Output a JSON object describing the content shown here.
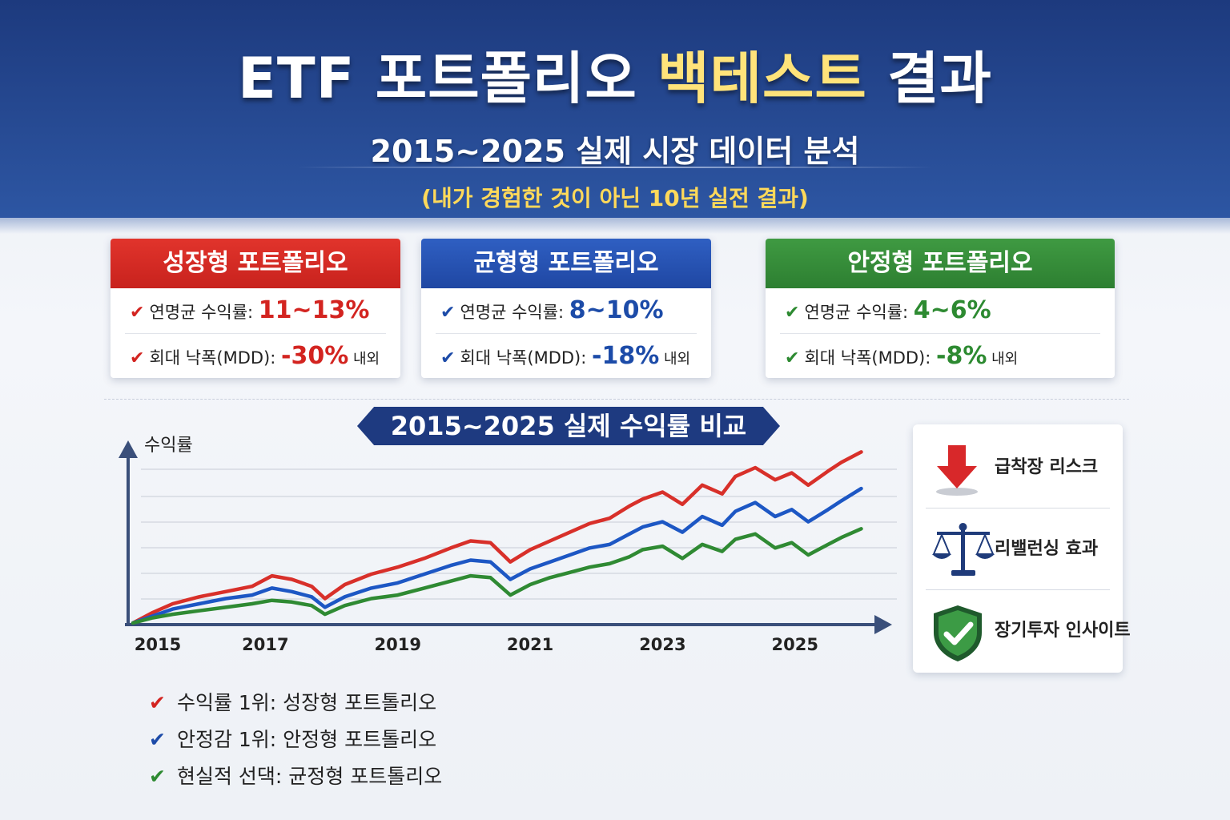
{
  "header": {
    "title_main": "ETF 포트폴리오 ",
    "title_highlight": "백테스트",
    "title_end": " 결과",
    "subtitle": "2015~2025 실제 시장 데이터 분석",
    "tagline": "(내가 경험한 것이 아닌 10년 실전 결과)"
  },
  "cards": [
    {
      "title": "성장형 포트폴리오",
      "color": "#d32420",
      "rows": [
        {
          "label": "연명균 수익률: ",
          "value": "11~13%",
          "suffix": ""
        },
        {
          "label": "회대 낙폭(MDD): ",
          "value": "-30%",
          "suffix": " 내외"
        }
      ]
    },
    {
      "title": "균형형 포트폴리오",
      "color": "#1c4ba8",
      "rows": [
        {
          "label": "연명균 수익률: ",
          "value": "8~10%",
          "suffix": ""
        },
        {
          "label": "회대 낙폭(MDD): ",
          "value": "-18%",
          "suffix": " 내외"
        }
      ]
    },
    {
      "title": "안정형 포트폴리오",
      "color": "#2d8a31",
      "rows": [
        {
          "label": "연명균 수익률: ",
          "value": "4~6%",
          "suffix": ""
        },
        {
          "label": "회대 낙폭(MDD): ",
          "value": "-8%",
          "suffix": " 내외"
        }
      ]
    }
  ],
  "chart_banner": "2015~2025  실제 수익률 비교",
  "chart_data": {
    "type": "line",
    "title": "2015~2025  실제 수익률 비교",
    "ylabel": "수익률",
    "xlabel": "",
    "x_ticks": [
      "2015",
      "2017",
      "2019",
      "2021",
      "2023",
      "2025"
    ],
    "xlim": [
      2015,
      2026.2
    ],
    "ylim": [
      0,
      100
    ],
    "grid": true,
    "series": [
      {
        "color": "#d8302a",
        "x": [
          2015,
          2015.3,
          2015.6,
          2016.0,
          2016.4,
          2016.8,
          2017.1,
          2017.4,
          2017.7,
          2017.9,
          2018.2,
          2018.6,
          2019.0,
          2019.4,
          2019.8,
          2020.1,
          2020.4,
          2020.7,
          2021.0,
          2021.3,
          2021.6,
          2021.9,
          2022.2,
          2022.5,
          2022.7,
          2023.0,
          2023.3,
          2023.6,
          2023.9,
          2024.1,
          2024.4,
          2024.7,
          2024.95,
          2025.2,
          2025.5,
          2025.7,
          2026.0
        ],
        "y": [
          0,
          6,
          11,
          15,
          18,
          21,
          27,
          25,
          21,
          14,
          22,
          28,
          32,
          37,
          43,
          47,
          46,
          35,
          42,
          47,
          52,
          57,
          60,
          67,
          71,
          75,
          68,
          79,
          74,
          84,
          89,
          82,
          86,
          79,
          87,
          92,
          98
        ]
      },
      {
        "color": "#1d57c4",
        "x": [
          2015,
          2015.3,
          2015.6,
          2016.0,
          2016.4,
          2016.8,
          2017.1,
          2017.4,
          2017.7,
          2017.9,
          2018.2,
          2018.6,
          2019.0,
          2019.4,
          2019.8,
          2020.1,
          2020.4,
          2020.7,
          2021.0,
          2021.3,
          2021.6,
          2021.9,
          2022.2,
          2022.5,
          2022.7,
          2023.0,
          2023.3,
          2023.6,
          2023.9,
          2024.1,
          2024.4,
          2024.7,
          2024.95,
          2025.2,
          2025.5,
          2025.7,
          2026.0
        ],
        "y": [
          0,
          4,
          8,
          11,
          14,
          16,
          20,
          18,
          15,
          9,
          15,
          20,
          23,
          28,
          33,
          36,
          35,
          25,
          31,
          35,
          39,
          43,
          45,
          51,
          55,
          58,
          52,
          61,
          56,
          64,
          69,
          61,
          65,
          58,
          65,
          70,
          77
        ]
      },
      {
        "color": "#2f8a33",
        "x": [
          2015,
          2015.3,
          2015.6,
          2016.0,
          2016.4,
          2016.8,
          2017.1,
          2017.4,
          2017.7,
          2017.9,
          2018.2,
          2018.6,
          2019.0,
          2019.4,
          2019.8,
          2020.1,
          2020.4,
          2020.7,
          2021.0,
          2021.3,
          2021.6,
          2021.9,
          2022.2,
          2022.5,
          2022.7,
          2023.0,
          2023.3,
          2023.6,
          2023.9,
          2024.1,
          2024.4,
          2024.7,
          2024.95,
          2025.2,
          2025.5,
          2025.7,
          2026.0
        ],
        "y": [
          0,
          3,
          5,
          7,
          9,
          11,
          13,
          12,
          10,
          5,
          10,
          14,
          16,
          20,
          24,
          27,
          26,
          16,
          22,
          26,
          29,
          32,
          34,
          38,
          42,
          44,
          37,
          45,
          41,
          48,
          51,
          43,
          46,
          39,
          45,
          49,
          54
        ]
      }
    ]
  },
  "side_panel": {
    "items": [
      {
        "icon": "arrow-down-icon",
        "label": "급착장 리스크"
      },
      {
        "icon": "scales-icon",
        "label": "리밸런싱 효과"
      },
      {
        "icon": "shield-check-icon",
        "label": "장기투자 인사이트"
      }
    ]
  },
  "conclusions": [
    {
      "color": "#d32420",
      "text": "수익률 1위: 성장형 포트톨리오"
    },
    {
      "color": "#1c4ba8",
      "text": "안정감 1위: 안정형 포트톨리오"
    },
    {
      "color": "#2d8a31",
      "text": "현실적 선댁: 균정형 포트톨리오"
    }
  ]
}
